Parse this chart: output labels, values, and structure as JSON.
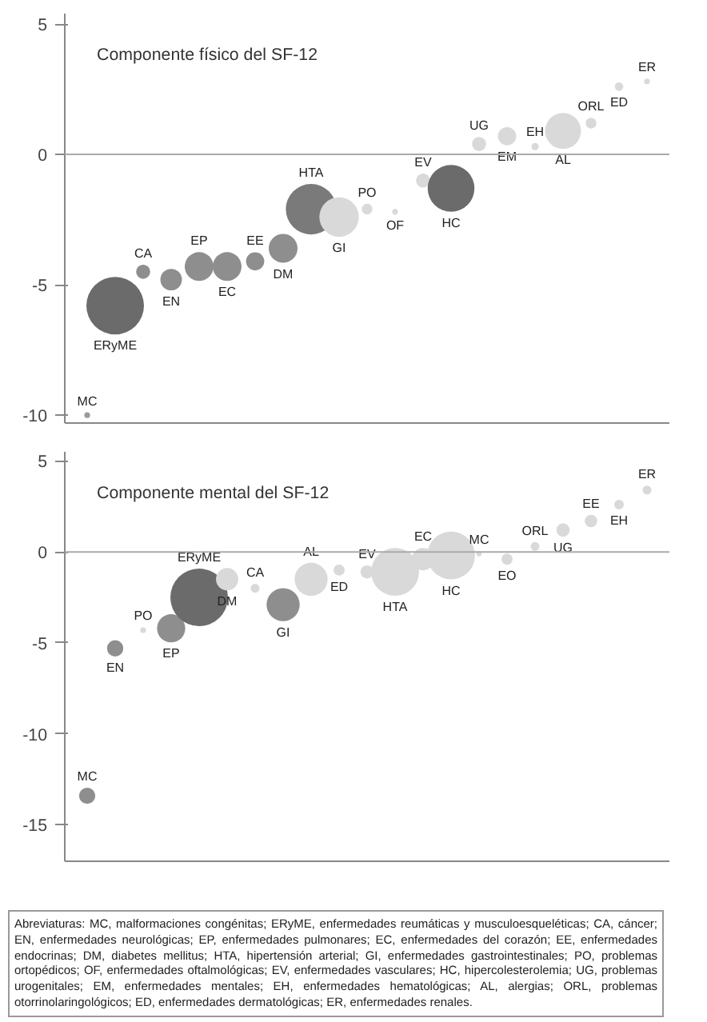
{
  "chart_data": [
    {
      "type": "bubble",
      "title": "Componente físico del SF-12",
      "categories": [
        "MC",
        "ERyME",
        "CA",
        "EN",
        "EP",
        "EC",
        "EE",
        "DM",
        "HTA",
        "GI",
        "PO",
        "OF",
        "EV",
        "HC",
        "UG",
        "EM",
        "EH",
        "AL",
        "ORL",
        "ED",
        "ER"
      ],
      "values": [
        -10,
        -5.8,
        -4.5,
        -4.8,
        -4.3,
        -4.3,
        -4.1,
        -3.6,
        -2.1,
        -2.4,
        -2.1,
        -2.2,
        -1.0,
        -1.3,
        0.4,
        0.7,
        0.3,
        0.9,
        1.2,
        2.6,
        2.8
      ],
      "sizes": [
        0.01,
        1,
        0.06,
        0.14,
        0.25,
        0.25,
        0.1,
        0.25,
        0.77,
        0.47,
        0.035,
        0.01,
        0.06,
        0.66,
        0.06,
        0.1,
        0.016,
        0.39,
        0.035,
        0.022,
        0.01
      ],
      "colors": [
        "#9a9a9a",
        "#6b6b6b",
        "#8e8e8e",
        "#8e8e8e",
        "#8e8e8e",
        "#8e8e8e",
        "#8e8e8e",
        "#8e8e8e",
        "#7a7a7a",
        "#d9d9d9",
        "#d9d9d9",
        "#d9d9d9",
        "#d9d9d9",
        "#6b6b6b",
        "#d9d9d9",
        "#d9d9d9",
        "#d9d9d9",
        "#d9d9d9",
        "#d9d9d9",
        "#d9d9d9",
        "#d9d9d9"
      ],
      "ylim": [
        -10.3,
        5.4
      ],
      "yticks": [
        -10,
        -5,
        0,
        5
      ],
      "ref_lines": [
        {
          "axis": "y",
          "value": 0,
          "color": "#aaaaaa"
        }
      ],
      "tick_labels": "y",
      "grid": false
    },
    {
      "type": "bubble",
      "title": "Componente mental del SF-12",
      "categories": [
        "MC",
        "EN",
        "PO",
        "EP",
        "ERyME",
        "DM",
        "CA",
        "GI",
        "AL",
        "ED",
        "EV",
        "HTA",
        "EC",
        "HC",
        "MC",
        "EO",
        "ORL",
        "UG",
        "EE",
        "EH",
        "ER"
      ],
      "values": [
        -13.4,
        -5.3,
        -4.3,
        -4.2,
        -2.5,
        -1.5,
        -2.0,
        -2.9,
        -1.5,
        -1.0,
        -1.1,
        -1.1,
        -0.4,
        -0.2,
        -0.1,
        -0.4,
        0.3,
        1.2,
        1.7,
        2.6,
        3.4
      ],
      "sizes": [
        0.08,
        0.08,
        0.01,
        0.24,
        1,
        0.15,
        0.024,
        0.33,
        0.33,
        0.037,
        0.053,
        0.69,
        0.15,
        0.69,
        0.008,
        0.037,
        0.024,
        0.053,
        0.047,
        0.028,
        0.024
      ],
      "colors": [
        "#8e8e8e",
        "#8e8e8e",
        "#d9d9d9",
        "#8e8e8e",
        "#6b6b6b",
        "#d9d9d9",
        "#d9d9d9",
        "#8e8e8e",
        "#d9d9d9",
        "#d9d9d9",
        "#d9d9d9",
        "#d9d9d9",
        "#d9d9d9",
        "#d9d9d9",
        "#d9d9d9",
        "#d9d9d9",
        "#d9d9d9",
        "#d9d9d9",
        "#d9d9d9",
        "#d9d9d9",
        "#d9d9d9"
      ],
      "ylim": [
        -17,
        5.5
      ],
      "yticks": [
        -15,
        -10,
        -5,
        0,
        5
      ],
      "ref_lines": [
        {
          "axis": "y",
          "value": 0,
          "color": "#aaaaaa"
        }
      ],
      "tick_labels": "y",
      "grid": false,
      "annotations": [
        "Abreviaturas: MC, malformaciones congénitas; ERyME, enfermedades reumáticas y musculoesqueléticas; CA, cáncer; EN, enfermedades neurológicas; EP, enfermedades pulmonares; EC, enfermedades del corazón; EE, enfermedades endocrinas; DM, diabetes mellitus; HTA, hipertensión arterial; GI, enfermedades gastrointestinales; PO, problemas ortopédicos; OF, enfermedades oftalmológicas; EV, enfermedades vasculares; HC, hipercolesterolemia; UG, problemas urogenitales; EM, enfermedades mentales; EH, enfermedades hematológicas; AL, alergias; ORL, problemas otorrinolaringológicos; ED, enfermedades dermatológicas; ER, enfermedades renales."
      ]
    }
  ]
}
